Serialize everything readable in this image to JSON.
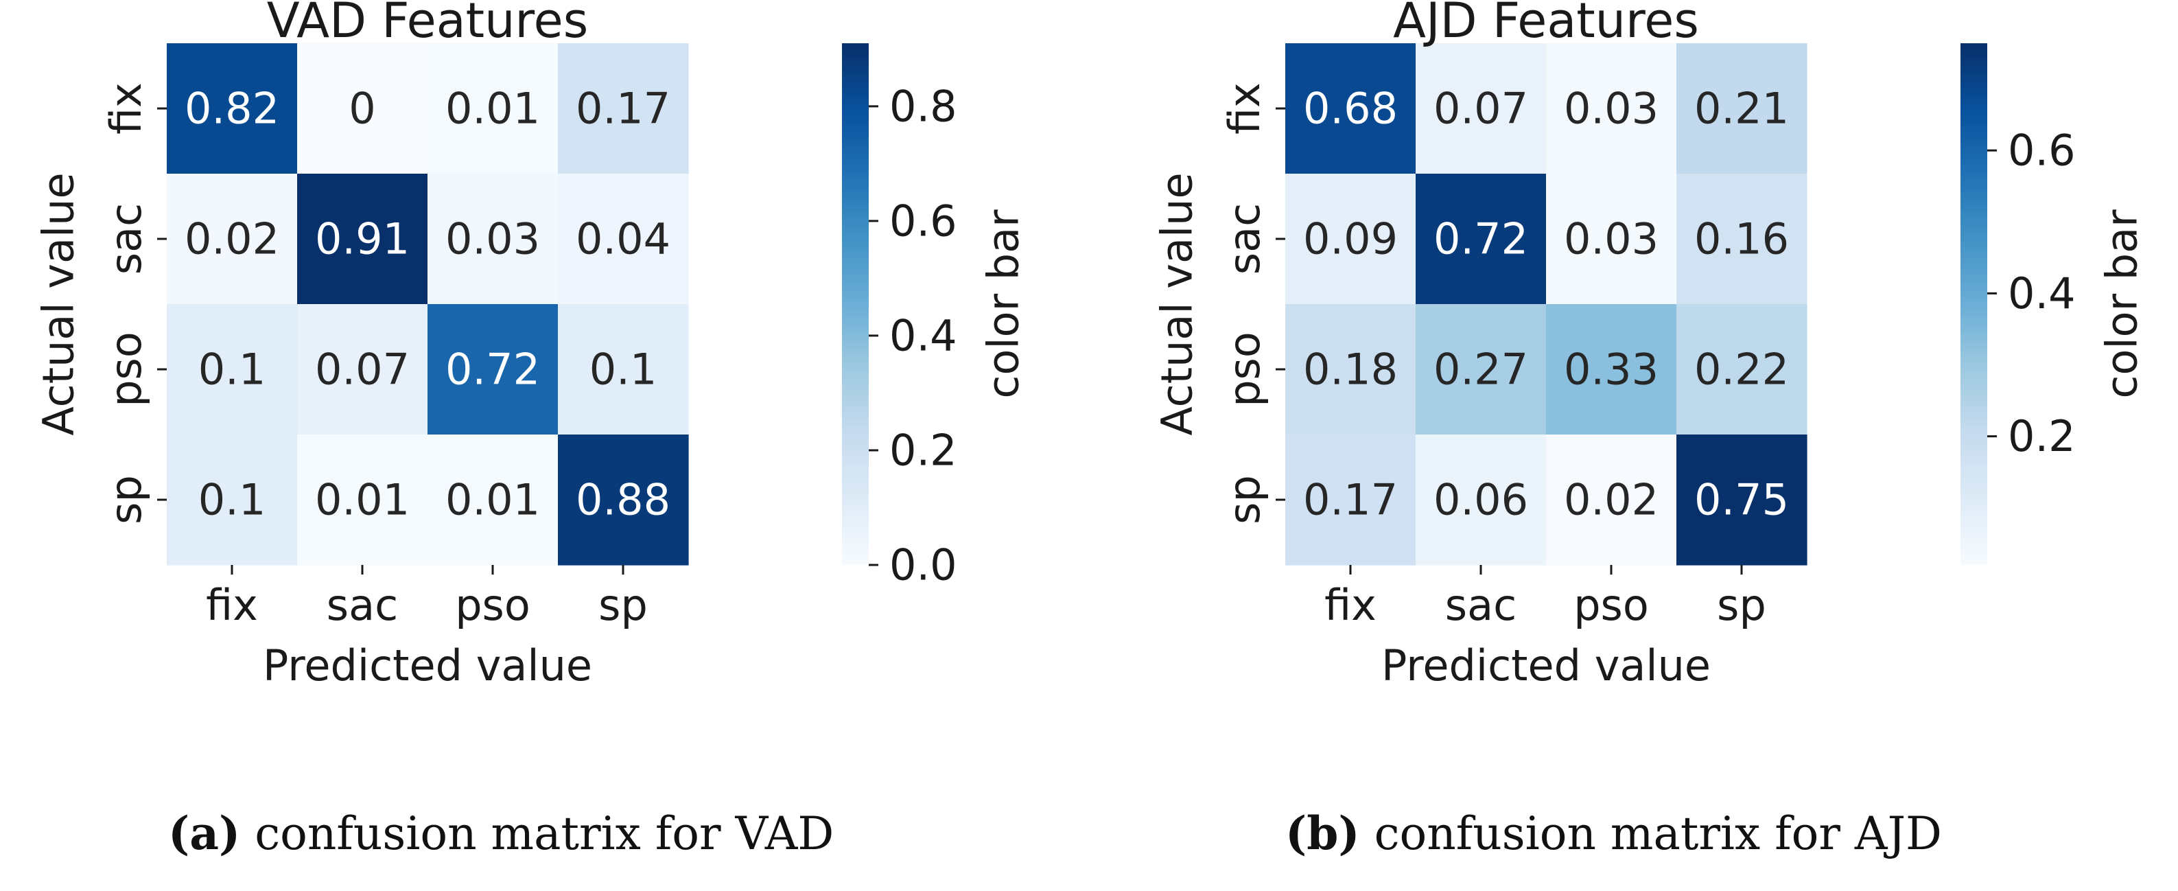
{
  "chart_data": [
    {
      "type": "heatmap",
      "title": "VAD Features",
      "xlabel": "Predicted value",
      "ylabel": "Actual value",
      "x_categories": [
        "fix",
        "sac",
        "pso",
        "sp"
      ],
      "y_categories": [
        "fix",
        "sac",
        "pso",
        "sp"
      ],
      "values": [
        [
          0.82,
          0,
          0.01,
          0.17
        ],
        [
          0.02,
          0.91,
          0.03,
          0.04
        ],
        [
          0.1,
          0.07,
          0.72,
          0.1
        ],
        [
          0.1,
          0.01,
          0.01,
          0.88
        ]
      ],
      "value_labels": [
        [
          "0.82",
          "0",
          "0.01",
          "0.17"
        ],
        [
          "0.02",
          "0.91",
          "0.03",
          "0.04"
        ],
        [
          "0.1",
          "0.07",
          "0.72",
          "0.1"
        ],
        [
          "0.1",
          "0.01",
          "0.01",
          "0.88"
        ]
      ],
      "colormap": "Blues",
      "colorbar": {
        "label": "color bar",
        "range": [
          0,
          0.91
        ],
        "ticks": [
          0.0,
          0.2,
          0.4,
          0.6,
          0.8
        ],
        "tick_labels": [
          "0.0",
          "0.2",
          "0.4",
          "0.6",
          "0.8"
        ]
      },
      "caption_letter": "(a)",
      "caption_text": " confusion matrix for VAD"
    },
    {
      "type": "heatmap",
      "title": "AJD Features",
      "xlabel": "Predicted value",
      "ylabel": "Actual value",
      "x_categories": [
        "fix",
        "sac",
        "pso",
        "sp"
      ],
      "y_categories": [
        "fix",
        "sac",
        "pso",
        "sp"
      ],
      "values": [
        [
          0.68,
          0.07,
          0.03,
          0.21
        ],
        [
          0.09,
          0.72,
          0.03,
          0.16
        ],
        [
          0.18,
          0.27,
          0.33,
          0.22
        ],
        [
          0.17,
          0.06,
          0.02,
          0.75
        ]
      ],
      "value_labels": [
        [
          "0.68",
          "0.07",
          "0.03",
          "0.21"
        ],
        [
          "0.09",
          "0.72",
          "0.03",
          "0.16"
        ],
        [
          "0.18",
          "0.27",
          "0.33",
          "0.22"
        ],
        [
          "0.17",
          "0.06",
          "0.02",
          "0.75"
        ]
      ],
      "colormap": "Blues",
      "colorbar": {
        "label": "color bar",
        "range": [
          0.02,
          0.75
        ],
        "ticks": [
          0.2,
          0.4,
          0.6
        ],
        "tick_labels": [
          "0.2",
          "0.4",
          "0.6"
        ]
      },
      "caption_letter": "(b)",
      "caption_text": " confusion matrix for AJD"
    }
  ]
}
